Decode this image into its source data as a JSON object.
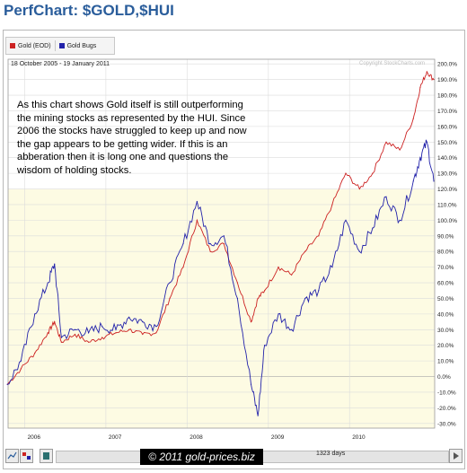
{
  "page": {
    "title": "PerfChart: $GOLD,$HUI"
  },
  "legend": {
    "items": [
      {
        "label": "Gold (EOD)",
        "color": "#cc2222",
        "icon": "red-square-icon"
      },
      {
        "label": "Gold Bugs",
        "color": "#2222aa",
        "icon": "blue-square-icon"
      }
    ]
  },
  "date_range": "18 October 2005 - 19 January 2011",
  "copyright": "Copyright StockCharts.com",
  "annotation": "As this chart shows Gold itself is still outperforming the mining stocks as represented by the HUI. Since 2006 the stocks have struggled to keep up and now the gap appears to be getting wider. If this is an abberation then it is long one and questions the wisdom of holding stocks.",
  "watermark": "© 2011 gold-prices.biz",
  "toolbar": {
    "days": "1323 days",
    "icons": [
      "line-chart-icon",
      "color-swatch-icon",
      "scroll-left-icon",
      "scroll-right-icon"
    ]
  },
  "chart_data": {
    "type": "line",
    "x_tick_labels": [
      "2006",
      "2007",
      "2008",
      "2009",
      "2010"
    ],
    "x": [
      "2005-10",
      "2005-12",
      "2006-02",
      "2006-04",
      "2006-05",
      "2006-06",
      "2006-08",
      "2006-10",
      "2006-12",
      "2007-02",
      "2007-04",
      "2007-06",
      "2007-08",
      "2007-10",
      "2007-12",
      "2008-02",
      "2008-04",
      "2008-06",
      "2008-08",
      "2008-10",
      "2008-11",
      "2008-12",
      "2009-02",
      "2009-04",
      "2009-06",
      "2009-08",
      "2009-10",
      "2009-12",
      "2010-02",
      "2010-04",
      "2010-06",
      "2010-08",
      "2010-10",
      "2010-11",
      "2010-12",
      "2011-01"
    ],
    "series": [
      {
        "name": "Gold (EOD)",
        "color": "#cc2222",
        "values": [
          -5,
          5,
          15,
          28,
          35,
          22,
          27,
          22,
          25,
          28,
          30,
          27,
          28,
          50,
          70,
          100,
          80,
          85,
          60,
          35,
          50,
          55,
          70,
          65,
          80,
          90,
          110,
          130,
          120,
          130,
          150,
          145,
          165,
          185,
          195,
          190
        ]
      },
      {
        "name": "Gold Bugs",
        "color": "#2222aa",
        "values": [
          -5,
          10,
          40,
          60,
          72,
          25,
          30,
          28,
          32,
          30,
          38,
          35,
          32,
          60,
          85,
          112,
          85,
          90,
          50,
          -5,
          -25,
          20,
          40,
          30,
          50,
          55,
          70,
          100,
          80,
          95,
          115,
          100,
          125,
          140,
          150,
          125
        ]
      }
    ],
    "y_ticks": [
      -30,
      -20,
      -10,
      0,
      10,
      20,
      30,
      40,
      50,
      60,
      70,
      80,
      90,
      100,
      110,
      120,
      130,
      140,
      150,
      160,
      170,
      180,
      190,
      200
    ],
    "y_unit": "%",
    "ylim": [
      -33,
      203
    ],
    "y_axis_position": "right",
    "grid": true
  }
}
